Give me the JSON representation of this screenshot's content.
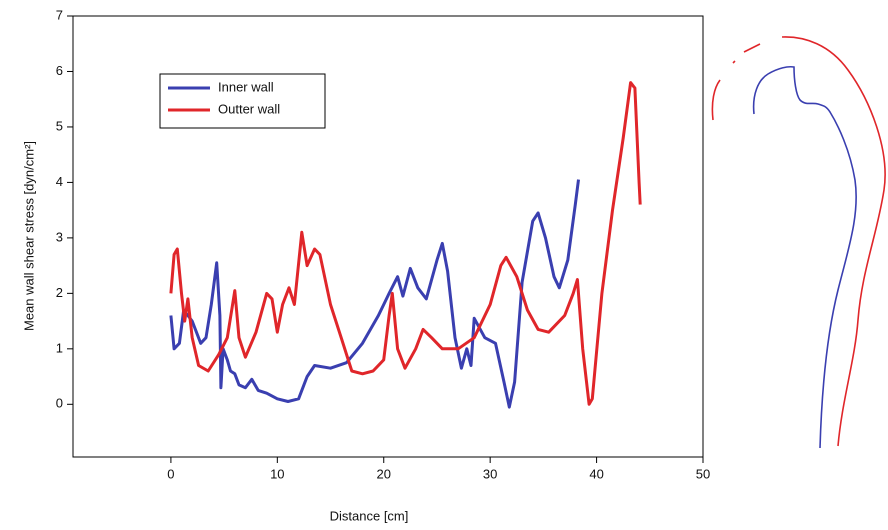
{
  "chart_data": {
    "type": "line",
    "xlabel": "Distance [cm]",
    "ylabel": "Mean wall shear stress [dyn/cm²]",
    "xlim": [
      -9.2,
      50
    ],
    "ylim": [
      -0.95,
      7
    ],
    "xticks": [
      0,
      10,
      20,
      30,
      40,
      50
    ],
    "yticks": [
      0,
      1,
      2,
      3,
      4,
      5,
      6,
      7
    ],
    "legend": "upper left",
    "series": [
      {
        "name": "Inner wall",
        "color": "#3a3fb0",
        "x": [
          0,
          0.3,
          0.8,
          1.2,
          2,
          2.8,
          3.3,
          3.8,
          4.3,
          4.6,
          4.7,
          4.9,
          5.3,
          5.6,
          6,
          6.4,
          7,
          7.6,
          8.2,
          9,
          10,
          11,
          12,
          12.8,
          13.5,
          15,
          16.5,
          18,
          19.5,
          20.5,
          21.3,
          21.8,
          22.5,
          23.2,
          24,
          25,
          25.5,
          26,
          26.7,
          27.3,
          27.8,
          28.2,
          28.5,
          29.5,
          30.5,
          31.3,
          31.8,
          32.3,
          33,
          34,
          34.5,
          35.2,
          36,
          36.5,
          37.3,
          38,
          38.3
        ],
        "values": [
          1.6,
          1.0,
          1.1,
          1.7,
          1.5,
          1.1,
          1.2,
          1.8,
          2.55,
          1.6,
          0.3,
          1.0,
          0.8,
          0.6,
          0.55,
          0.35,
          0.3,
          0.45,
          0.25,
          0.2,
          0.1,
          0.05,
          0.1,
          0.5,
          0.7,
          0.65,
          0.75,
          1.1,
          1.6,
          2.0,
          2.3,
          1.95,
          2.45,
          2.1,
          1.9,
          2.6,
          2.9,
          2.4,
          1.2,
          0.65,
          1.0,
          0.7,
          1.55,
          1.2,
          1.1,
          0.4,
          -0.05,
          0.4,
          2.2,
          3.3,
          3.45,
          3.0,
          2.3,
          2.1,
          2.6,
          3.6,
          4.05
        ]
      },
      {
        "name": "Outter wall",
        "color": "#e0262a",
        "x": [
          0,
          0.3,
          0.6,
          1.0,
          1.3,
          1.6,
          2,
          2.6,
          3.5,
          4.5,
          5.3,
          6,
          6.4,
          7,
          8,
          9,
          9.5,
          10,
          10.5,
          11.1,
          11.6,
          12.3,
          12.8,
          13.5,
          14,
          15,
          16,
          17,
          18,
          19,
          20,
          20.5,
          20.8,
          21.3,
          22,
          23,
          23.7,
          24.5,
          25.5,
          27,
          28.5,
          30,
          31,
          31.5,
          32.5,
          33.5,
          34.5,
          35.5,
          37,
          37.8,
          38.2,
          38.7,
          39.3,
          39.6,
          40.5,
          41.5,
          42.5,
          43.2,
          43.6,
          44,
          44.1
        ],
        "values": [
          2.0,
          2.7,
          2.8,
          2.0,
          1.5,
          1.9,
          1.2,
          0.7,
          0.6,
          0.9,
          1.2,
          2.05,
          1.2,
          0.85,
          1.3,
          2.0,
          1.9,
          1.3,
          1.8,
          2.1,
          1.8,
          3.1,
          2.5,
          2.8,
          2.7,
          1.8,
          1.2,
          0.6,
          0.55,
          0.6,
          0.8,
          1.6,
          2.0,
          1.0,
          0.65,
          1.0,
          1.35,
          1.2,
          1.0,
          1.0,
          1.2,
          1.8,
          2.5,
          2.65,
          2.3,
          1.7,
          1.35,
          1.3,
          1.6,
          2.0,
          2.25,
          1.0,
          0.0,
          0.1,
          2.0,
          3.5,
          4.8,
          5.8,
          5.7,
          4.0,
          3.6
        ]
      }
    ]
  }
}
